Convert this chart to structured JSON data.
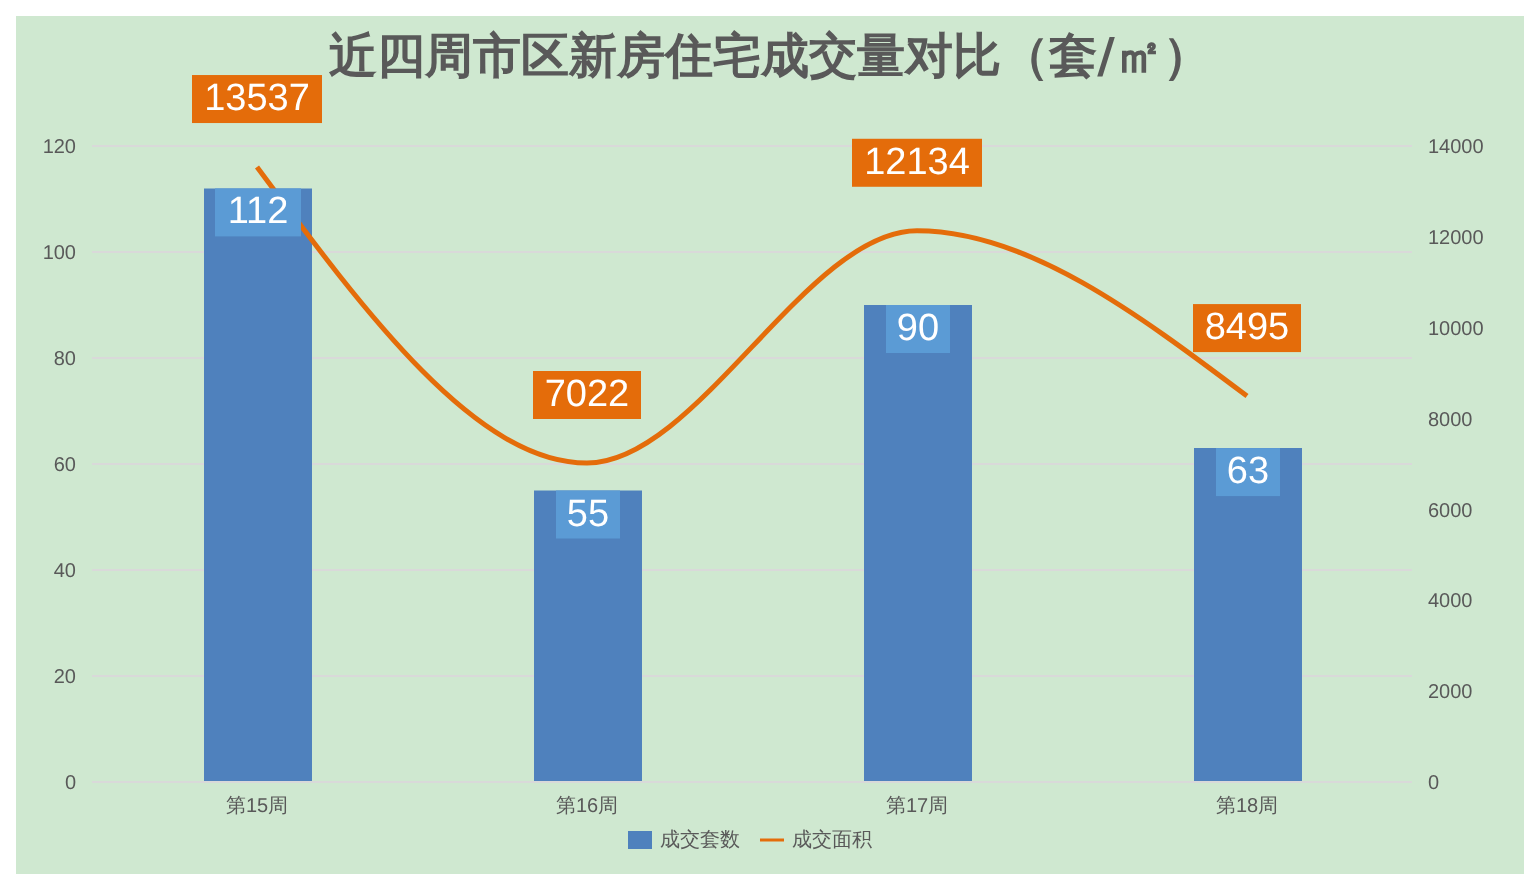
{
  "chart_data": {
    "type": "bar",
    "title": "近四周市区新房住宅成交量对比（套/㎡）",
    "categories": [
      "第15周",
      "第16周",
      "第17周",
      "第18周"
    ],
    "series": [
      {
        "name": "成交套数",
        "color": "#4f81bd",
        "values": [
          112,
          55,
          90,
          63
        ]
      },
      {
        "name": "成交面积",
        "type": "line",
        "axis": "y2",
        "color": "#e46c0a",
        "values": [
          13537,
          7022,
          12134,
          8495
        ]
      }
    ],
    "ylim": [
      0,
      120
    ],
    "yticks": [
      0,
      20,
      40,
      60,
      80,
      100,
      120
    ],
    "y2lim": [
      0,
      14000
    ],
    "y2ticks": [
      0,
      2000,
      4000,
      6000,
      8000,
      10000,
      12000,
      14000
    ],
    "grid": "y",
    "legend": "bottom",
    "data_labels": true,
    "marker": "none"
  }
}
